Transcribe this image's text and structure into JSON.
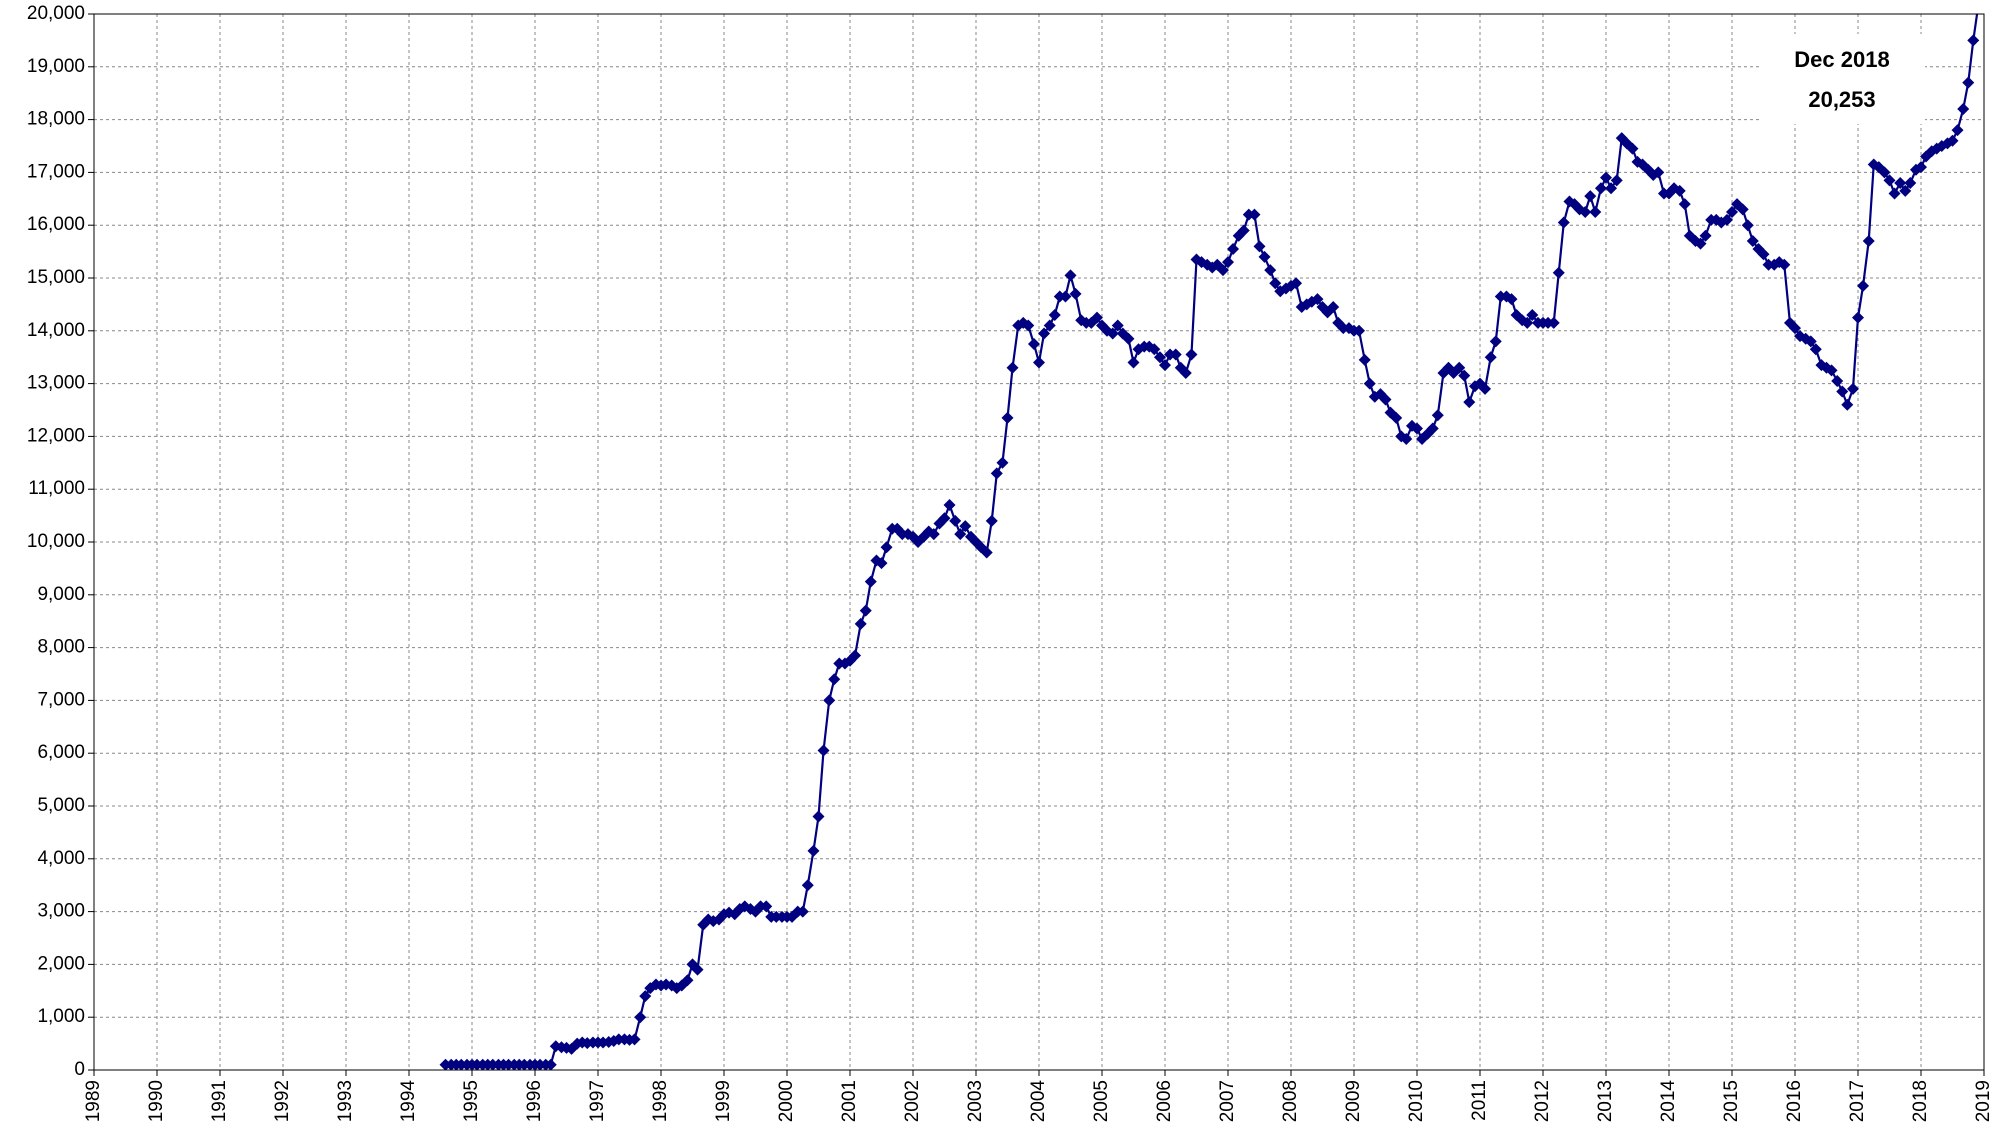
{
  "chart_data": {
    "type": "line",
    "annotation": [
      "Dec 2018",
      "20,253"
    ],
    "xlim": [
      1989,
      2019
    ],
    "xticks": [
      1989,
      1990,
      1991,
      1992,
      1993,
      1994,
      1995,
      1996,
      1997,
      1998,
      1999,
      2000,
      2001,
      2002,
      2003,
      2004,
      2005,
      2006,
      2007,
      2008,
      2009,
      2010,
      2011,
      2012,
      2013,
      2014,
      2015,
      2016,
      2017,
      2018,
      2019
    ],
    "ylim": [
      0,
      20000
    ],
    "yticks": [
      0,
      {
        "value": 1000,
        "label": "1,000"
      },
      {
        "value": 2000,
        "label": "2,000"
      },
      {
        "value": 3000,
        "label": "3,000"
      },
      {
        "value": 4000,
        "label": "4,000"
      },
      {
        "value": 5000,
        "label": "5,000"
      },
      {
        "value": 6000,
        "label": "6,000"
      },
      {
        "value": 7000,
        "label": "7,000"
      },
      {
        "value": 8000,
        "label": "8,000"
      },
      {
        "value": 9000,
        "label": "9,000"
      },
      {
        "value": 10000,
        "label": "10,000"
      },
      {
        "value": 11000,
        "label": "11,000"
      },
      {
        "value": 12000,
        "label": "12,000"
      },
      {
        "value": 13000,
        "label": "13,000"
      },
      {
        "value": 14000,
        "label": "14,000"
      },
      {
        "value": 15000,
        "label": "15,000"
      },
      {
        "value": 16000,
        "label": "16,000"
      },
      {
        "value": 17000,
        "label": "17,000"
      },
      {
        "value": 18000,
        "label": "18,000"
      },
      {
        "value": 19000,
        "label": "19,000"
      },
      {
        "value": 20000,
        "label": "20,000"
      }
    ],
    "grid": true,
    "x": [
      1994.58,
      1994.67,
      1994.75,
      1994.83,
      1994.92,
      1995,
      1995.08,
      1995.17,
      1995.25,
      1995.33,
      1995.42,
      1995.5,
      1995.58,
      1995.67,
      1995.75,
      1995.83,
      1995.92,
      1996,
      1996.08,
      1996.17,
      1996.25,
      1996.33,
      1996.42,
      1996.5,
      1996.58,
      1996.67,
      1996.75,
      1996.83,
      1996.92,
      1997,
      1997.08,
      1997.17,
      1997.25,
      1997.33,
      1997.42,
      1997.5,
      1997.58,
      1997.67,
      1997.75,
      1997.83,
      1997.92,
      1998,
      1998.08,
      1998.17,
      1998.25,
      1998.33,
      1998.42,
      1998.5,
      1998.58,
      1998.67,
      1998.75,
      1998.83,
      1998.92,
      1999,
      1999.08,
      1999.17,
      1999.25,
      1999.33,
      1999.42,
      1999.5,
      1999.58,
      1999.67,
      1999.75,
      1999.83,
      1999.92,
      2000,
      2000.08,
      2000.17,
      2000.25,
      2000.33,
      2000.42,
      2000.5,
      2000.58,
      2000.67,
      2000.75,
      2000.83,
      2000.92,
      2001,
      2001.08,
      2001.17,
      2001.25,
      2001.33,
      2001.42,
      2001.5,
      2001.58,
      2001.67,
      2001.75,
      2001.83,
      2001.92,
      2002,
      2002.08,
      2002.17,
      2002.25,
      2002.33,
      2002.42,
      2002.5,
      2002.58,
      2002.67,
      2002.75,
      2002.83,
      2002.92,
      2003,
      2003.08,
      2003.17,
      2003.25,
      2003.33,
      2003.42,
      2003.5,
      2003.58,
      2003.67,
      2003.75,
      2003.83,
      2003.92,
      2004,
      2004.08,
      2004.17,
      2004.25,
      2004.33,
      2004.42,
      2004.5,
      2004.58,
      2004.67,
      2004.75,
      2004.83,
      2004.92,
      2005,
      2005.08,
      2005.17,
      2005.25,
      2005.33,
      2005.42,
      2005.5,
      2005.58,
      2005.67,
      2005.75,
      2005.83,
      2005.92,
      2006,
      2006.08,
      2006.17,
      2006.25,
      2006.33,
      2006.42,
      2006.5,
      2006.58,
      2006.67,
      2006.75,
      2006.83,
      2006.92,
      2007,
      2007.08,
      2007.17,
      2007.25,
      2007.33,
      2007.42,
      2007.5,
      2007.58,
      2007.67,
      2007.75,
      2007.83,
      2007.92,
      2008,
      2008.08,
      2008.17,
      2008.25,
      2008.33,
      2008.42,
      2008.5,
      2008.58,
      2008.67,
      2008.75,
      2008.83,
      2008.92,
      2009,
      2009.08,
      2009.17,
      2009.25,
      2009.33,
      2009.42,
      2009.5,
      2009.58,
      2009.67,
      2009.75,
      2009.83,
      2009.92,
      2010,
      2010.08,
      2010.17,
      2010.25,
      2010.33,
      2010.42,
      2010.5,
      2010.58,
      2010.67,
      2010.75,
      2010.83,
      2010.92,
      2011,
      2011.08,
      2011.17,
      2011.25,
      2011.33,
      2011.42,
      2011.5,
      2011.58,
      2011.67,
      2011.75,
      2011.83,
      2011.92,
      2012,
      2012.08,
      2012.17,
      2012.25,
      2012.33,
      2012.42,
      2012.5,
      2012.58,
      2012.67,
      2012.75,
      2012.83,
      2012.92,
      2013,
      2013.08,
      2013.17,
      2013.25,
      2013.33,
      2013.42,
      2013.5,
      2013.58,
      2013.67,
      2013.75,
      2013.83,
      2013.92,
      2014,
      2014.08,
      2014.17,
      2014.25,
      2014.33,
      2014.42,
      2014.5,
      2014.58,
      2014.67,
      2014.75,
      2014.83,
      2014.92,
      2015,
      2015.08,
      2015.17,
      2015.25,
      2015.33,
      2015.42,
      2015.5,
      2015.58,
      2015.67,
      2015.75,
      2015.83,
      2015.92,
      2016,
      2016.08,
      2016.17,
      2016.25,
      2016.33,
      2016.42,
      2016.5,
      2016.58,
      2016.67,
      2016.75,
      2016.83,
      2016.92,
      2017,
      2017.08,
      2017.17,
      2017.25,
      2017.33,
      2017.42,
      2017.5,
      2017.58,
      2017.67,
      2017.75,
      2017.83,
      2017.92,
      2018,
      2018.08,
      2018.17,
      2018.25,
      2018.33,
      2018.42,
      2018.5,
      2018.58,
      2018.67,
      2018.75,
      2018.83,
      2018.92
    ],
    "series": [
      {
        "color": "#000080",
        "values": [
          100,
          100,
          100,
          100,
          100,
          100,
          100,
          100,
          100,
          100,
          100,
          100,
          100,
          100,
          100,
          100,
          100,
          100,
          100,
          100,
          100,
          450,
          430,
          420,
          400,
          500,
          520,
          510,
          520,
          520,
          520,
          530,
          550,
          580,
          580,
          570,
          580,
          1000,
          1400,
          1550,
          1620,
          1600,
          1620,
          1600,
          1550,
          1600,
          1700,
          2000,
          1900,
          2750,
          2850,
          2820,
          2850,
          2950,
          2980,
          2950,
          3050,
          3100,
          3050,
          3000,
          3100,
          3100,
          2900,
          2900,
          2900,
          2900,
          2900,
          3000,
          3000,
          3500,
          4150,
          4800,
          6050,
          7000,
          7400,
          7700,
          7700,
          7750,
          7850,
          8450,
          8700,
          9250,
          9650,
          9600,
          9900,
          10250,
          10250,
          10150,
          10150,
          10100,
          10000,
          10100,
          10200,
          10150,
          10350,
          10450,
          10700,
          10400,
          10150,
          10300,
          10100,
          10000,
          9900,
          9800,
          10400,
          11300,
          11500,
          12350,
          13300,
          14100,
          14150,
          14100,
          13750,
          13400,
          13950,
          14100,
          14300,
          14650,
          14650,
          15050,
          14700,
          14200,
          14150,
          14150,
          14250,
          14100,
          14000,
          13950,
          14100,
          13950,
          13850,
          13400,
          13650,
          13700,
          13700,
          13650,
          13500,
          13350,
          13550,
          13550,
          13300,
          13200,
          13550,
          15350,
          15300,
          15250,
          15200,
          15250,
          15150,
          15300,
          15550,
          15800,
          15900,
          16200,
          16200,
          15600,
          15400,
          15150,
          14900,
          14750,
          14800,
          14850,
          14900,
          14450,
          14500,
          14550,
          14600,
          14450,
          14350,
          14450,
          14150,
          14050,
          14050,
          14000,
          14000,
          13450,
          13000,
          12750,
          12800,
          12700,
          12450,
          12350,
          12000,
          11950,
          12200,
          12150,
          11950,
          12050,
          12150,
          12400,
          13200,
          13300,
          13200,
          13300,
          13150,
          12650,
          12950,
          13000,
          12900,
          13500,
          13800,
          14650,
          14650,
          14600,
          14300,
          14200,
          14150,
          14300,
          14150,
          14150,
          14150,
          14150,
          15100,
          16050,
          16450,
          16400,
          16300,
          16250,
          16550,
          16250,
          16700,
          16900,
          16700,
          16850,
          17650,
          17550,
          17450,
          17200,
          17150,
          17050,
          16950,
          17000,
          16600,
          16600,
          16700,
          16650,
          16400,
          15800,
          15700,
          15650,
          15800,
          16100,
          16100,
          16050,
          16100,
          16250,
          16400,
          16300,
          16000,
          15700,
          15550,
          15450,
          15250,
          15250,
          15300,
          15250,
          14150,
          14050,
          13900,
          13850,
          13800,
          13650,
          13350,
          13300,
          13250,
          13050,
          12850,
          12600,
          12900,
          14250,
          14850,
          15700,
          17150,
          17100,
          17000,
          16850,
          16600,
          16800,
          16650,
          16800,
          17050,
          17100,
          17300,
          17400,
          17450,
          17500,
          17550,
          17600,
          17800,
          18200,
          18700,
          19500,
          20253
        ]
      }
    ]
  }
}
